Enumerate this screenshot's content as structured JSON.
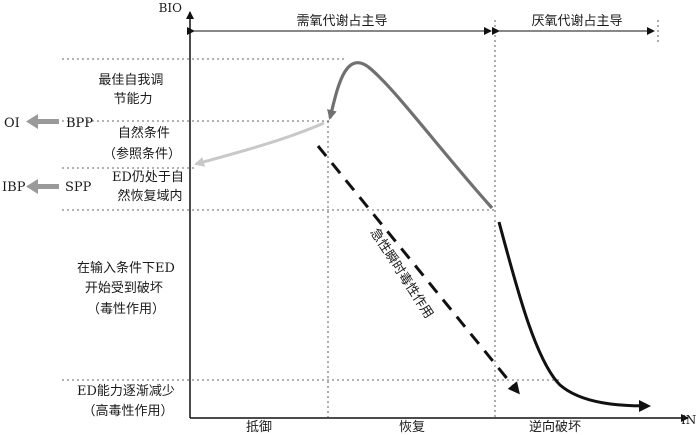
{
  "axes": {
    "y_label": "BIO",
    "x_label": "IN"
  },
  "top_regions": {
    "aerobic": "需氧代谢占主导",
    "anaerobic": "厌氧代谢占主导"
  },
  "bottom_regions": {
    "resist": "抵御",
    "recover": "恢复",
    "reverse": "逆向破坏"
  },
  "left_levels": {
    "best": [
      "最佳自我调",
      "节能力"
    ],
    "natural": [
      "自然条件",
      "（参照条件）"
    ],
    "ed_within": [
      "ED仍处于自",
      "然恢复域内"
    ],
    "ed_damaged": [
      "在输入条件下ED",
      "开始受到破坏",
      "（毒性作用）"
    ],
    "ed_decrease": [
      "ED能力逐渐减少",
      "（高毒性作用）"
    ]
  },
  "markers": {
    "bpp": "BPP",
    "spp": "SPP",
    "oi": "OI",
    "ibp": "IBP"
  },
  "annotation": "急性瞬时毒性作用",
  "colors": {
    "dark": "#111111",
    "mid": "#707070",
    "light": "#c8c8c8",
    "arrow": "#9a9a9a"
  }
}
